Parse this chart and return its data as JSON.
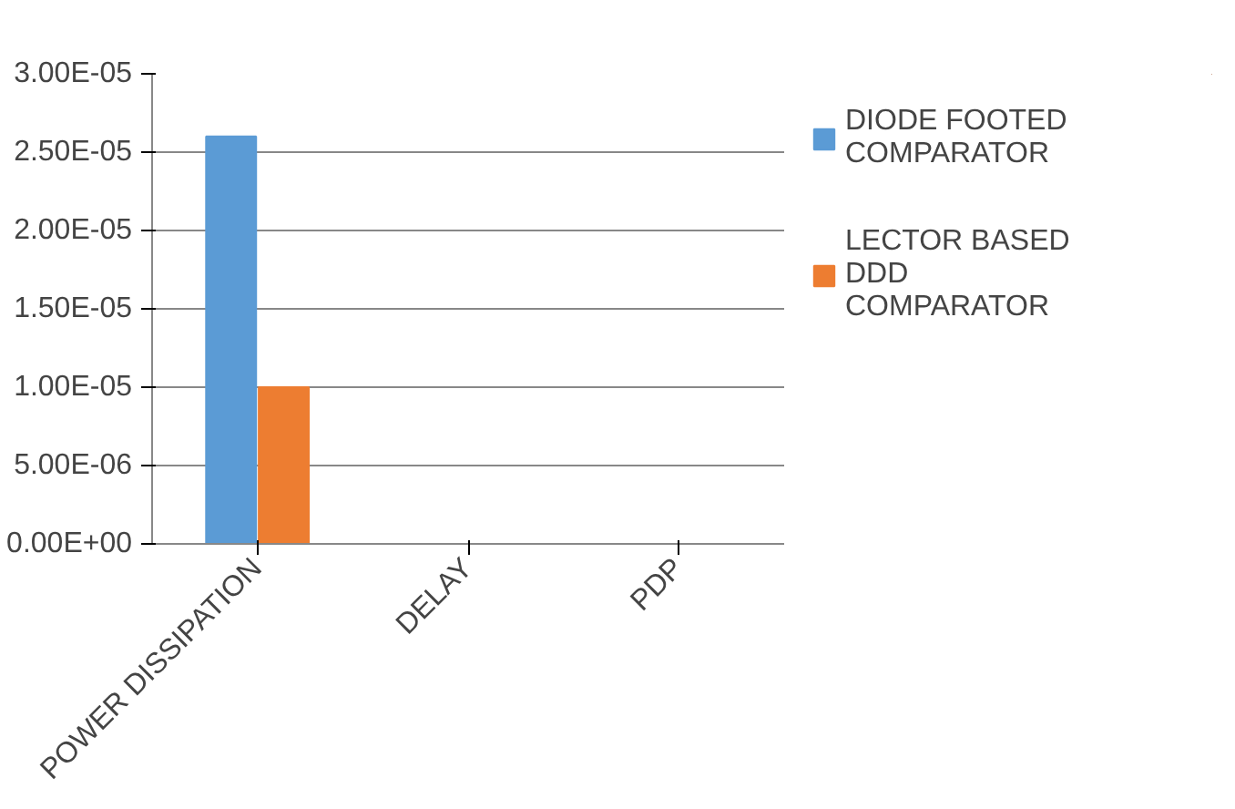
{
  "chart_data": {
    "type": "bar",
    "categories": [
      "POWER DISSIPATION",
      "DELAY",
      "PDP"
    ],
    "series": [
      {
        "name": "DIODE FOOTED COMPARATOR",
        "color": "#5b9bd5",
        "values": [
          2.6e-05,
          0,
          0
        ]
      },
      {
        "name": "LECTOR BASED DDD COMPARATOR",
        "color": "#ed7d31",
        "values": [
          1e-05,
          0,
          0
        ]
      }
    ],
    "ylim": [
      0,
      3e-05
    ],
    "yticks": [
      {
        "value": 0,
        "label": "0.00E+00"
      },
      {
        "value": 5e-06,
        "label": "5.00E-06"
      },
      {
        "value": 1e-05,
        "label": "1.00E-05"
      },
      {
        "value": 1.5e-05,
        "label": "1.50E-05"
      },
      {
        "value": 2e-05,
        "label": "2.00E-05"
      },
      {
        "value": 2.5e-05,
        "label": "2.50E-05"
      },
      {
        "value": 3e-05,
        "label": "3.00E-05"
      }
    ],
    "grid": "y",
    "legend": "right"
  }
}
